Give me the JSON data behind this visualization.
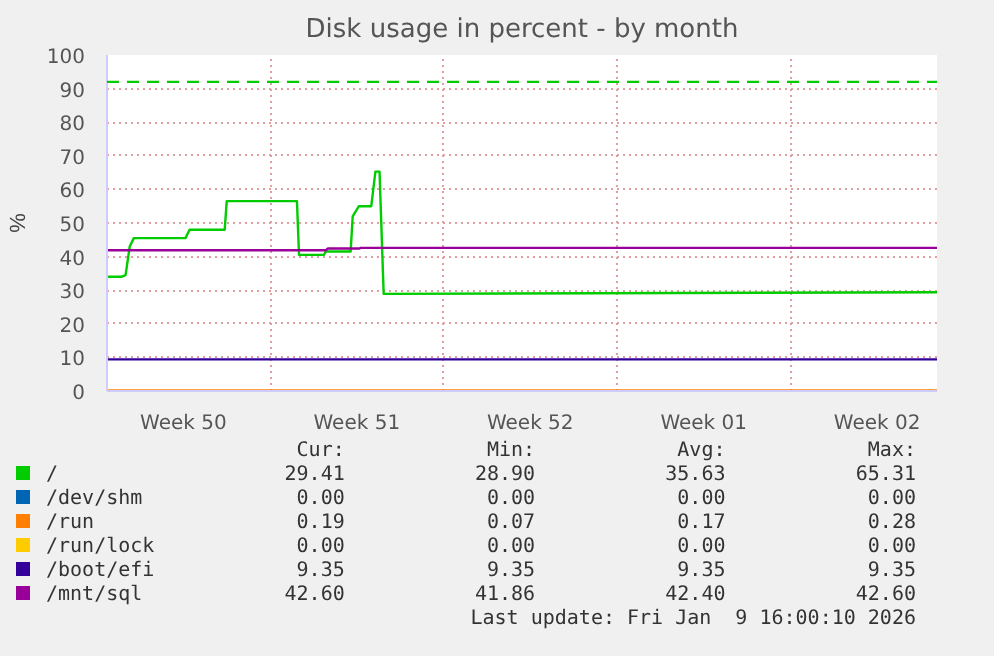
{
  "chart_data": {
    "type": "line",
    "title": "Disk usage in percent - by month",
    "ylabel": "%",
    "xlim": [
      "2025-12-08T10:00",
      "2026-01-10T22:00"
    ],
    "xticks": [
      {
        "value": "2025-12-11T12:00",
        "label": "Week 50"
      },
      {
        "value": "2025-12-18T12:00",
        "label": "Week 51"
      },
      {
        "value": "2025-12-25T12:00",
        "label": "Week 52"
      },
      {
        "value": "2026-01-01T12:00",
        "label": "Week 01"
      },
      {
        "value": "2026-01-08T12:00",
        "label": "Week 02"
      },
      {
        "value": "2025-12-15",
        "label": null
      },
      {
        "value": "2025-12-22",
        "label": null
      },
      {
        "value": "2025-12-29",
        "label": null
      },
      {
        "value": "2026-01-05",
        "label": null
      }
    ],
    "ylim": [
      0,
      100
    ],
    "yticks": [
      0,
      10,
      20,
      30,
      40,
      50,
      60,
      70,
      80,
      90,
      100
    ],
    "grid": true,
    "legend": "bottom",
    "line_style": "solid",
    "series": [
      {
        "name": "/",
        "color": "#00cc00",
        "x": [
          "2025-12-08T10:00",
          "2025-12-08T23:50",
          "2025-12-09T04:00",
          "2025-12-09T08:00",
          "2025-12-09T12:00",
          "2025-12-11T14:00",
          "2025-12-11T18:00",
          "2025-12-13T04:00",
          "2025-12-13T06:00",
          "2025-12-16T02:00",
          "2025-12-16T04:00",
          "2025-12-17T04:00",
          "2025-12-17T06:00",
          "2025-12-18T06:00",
          "2025-12-18T08:00",
          "2025-12-18T14:00",
          "2025-12-19T02:00",
          "2025-12-19T06:00",
          "2025-12-19T10:00",
          "2025-12-19T14:00",
          "2026-01-10T22:00"
        ],
        "values": [
          34,
          34,
          34.5,
          43,
          45.5,
          45.5,
          48,
          48,
          56.5,
          56.5,
          40.5,
          40.5,
          41.5,
          41.5,
          52,
          55,
          55,
          65.3,
          65.3,
          28.9,
          29.4
        ]
      },
      {
        "name": "/dev/shm",
        "color": "#0066b3"
      },
      {
        "name": "/run",
        "color": "#ff8000",
        "x": [
          "2025-12-08T10:00",
          "2026-01-10T22:00"
        ],
        "values": [
          0.2,
          0.2
        ]
      },
      {
        "name": "/run/lock",
        "color": "#ffcc00"
      },
      {
        "name": "/boot/efi",
        "color": "#330099",
        "x": [
          "2025-12-08T10:00",
          "2026-01-10T22:00"
        ],
        "values": [
          9.4,
          9.4
        ]
      },
      {
        "name": "/mnt/sql",
        "color": "#990099",
        "x": [
          "2025-12-08T10:00",
          "2025-12-17T06:00",
          "2025-12-17T08:00",
          "2025-12-18T14:00",
          "2025-12-18T16:00",
          "2026-01-10T22:00"
        ],
        "values": [
          41.9,
          41.9,
          42.4,
          42.4,
          42.6,
          42.6
        ]
      }
    ],
    "ref_lines": [
      {
        "axis": "y",
        "value": 92,
        "color": "#00cc00",
        "line_style": "dashed"
      }
    ],
    "annotations": [
      "Cur:",
      "Min:",
      "Avg:",
      "Max:",
      "29.41",
      "28.90",
      "35.63",
      "65.31",
      "0.00",
      "0.00",
      "0.00",
      "0.00",
      "0.19",
      "0.07",
      "0.17",
      "0.28",
      "0.00",
      "0.00",
      "0.00",
      "0.00",
      "9.35",
      "9.35",
      "9.35",
      "9.35",
      "42.60",
      "41.86",
      "42.40",
      "42.60",
      "Last update: Fri Jan  9 16:00:10 2026"
    ]
  }
}
